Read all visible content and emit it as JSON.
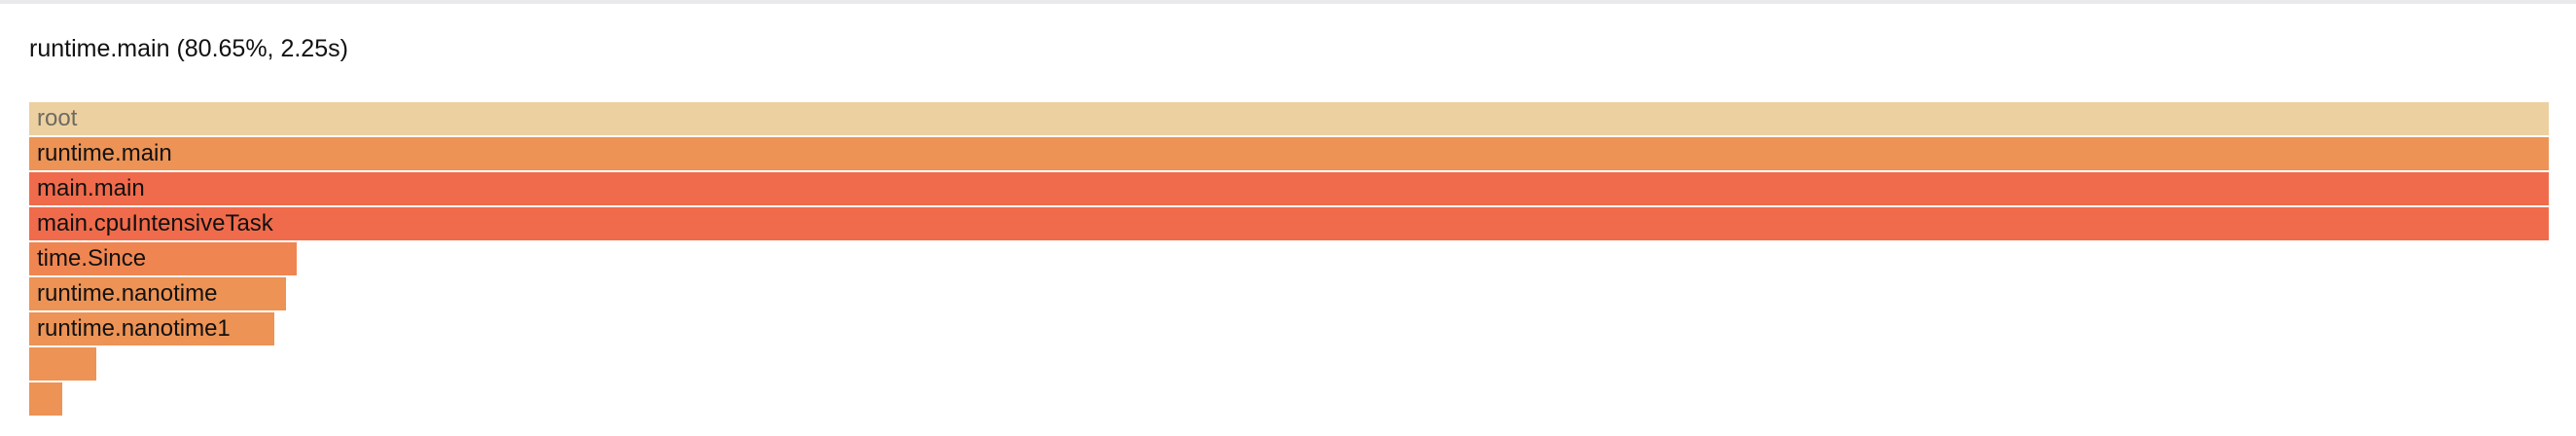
{
  "header": {
    "title": "runtime.main (80.65%, 2.25s)"
  },
  "colors": {
    "root": "#ecd0a0",
    "orange": "#ec9355",
    "red": "#f06b4b",
    "coral": "#ef8651"
  },
  "flamegraph": {
    "frames": [
      {
        "label": "root"
      },
      {
        "label": "runtime.main"
      },
      {
        "label": "main.main"
      },
      {
        "label": "main.cpuIntensiveTask"
      },
      {
        "label": "time.Since"
      },
      {
        "label": "runtime.nanotime"
      },
      {
        "label": "runtime.nanotime1"
      },
      {
        "label": ""
      },
      {
        "label": ""
      }
    ]
  }
}
